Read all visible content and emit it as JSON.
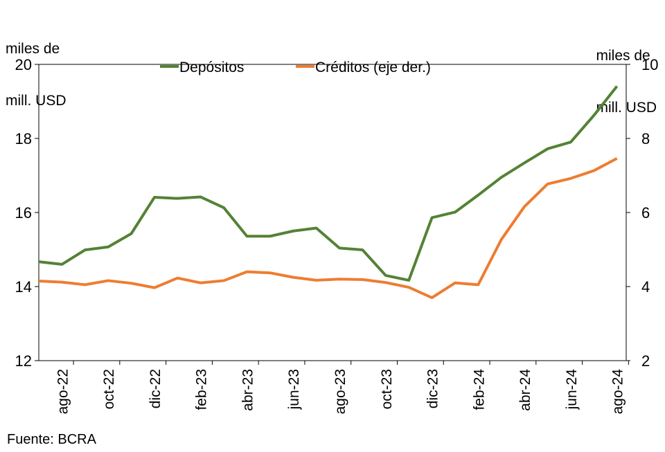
{
  "chart_data": {
    "type": "line",
    "left_axis_unit": [
      "miles de",
      "mill. USD"
    ],
    "right_axis_unit": [
      "miles de",
      "mill. USD"
    ],
    "source": "Fuente: BCRA",
    "y_left": {
      "min": 12,
      "max": 20,
      "ticks": [
        12,
        14,
        16,
        18,
        20
      ]
    },
    "y_right": {
      "min": 2,
      "max": 10,
      "ticks": [
        2,
        4,
        6,
        8,
        10
      ]
    },
    "x_tick_labels": [
      "ago-22",
      "oct-22",
      "dic-22",
      "feb-23",
      "abr-23",
      "jun-23",
      "ago-23",
      "oct-23",
      "dic-23",
      "feb-24",
      "abr-24",
      "jun-24",
      "ago-24"
    ],
    "x": [
      "jul-22",
      "ago-22",
      "sep-22",
      "oct-22",
      "nov-22",
      "dic-22",
      "ene-23",
      "feb-23",
      "mar-23",
      "abr-23",
      "may-23",
      "jun-23",
      "jul-23",
      "ago-23",
      "sep-23",
      "oct-23",
      "nov-23",
      "dic-23",
      "ene-24",
      "feb-24",
      "mar-24",
      "abr-24",
      "may-24",
      "jun-24",
      "jul-24",
      "ago-24"
    ],
    "series": [
      {
        "name": "Depósitos",
        "axis": "left",
        "color": "#548235",
        "values": [
          14.67,
          14.6,
          14.99,
          15.07,
          15.43,
          16.41,
          16.38,
          16.42,
          16.13,
          15.36,
          15.36,
          15.5,
          15.58,
          15.04,
          14.99,
          14.3,
          14.17,
          15.86,
          16.01,
          16.47,
          16.95,
          17.34,
          17.72,
          17.9,
          18.62,
          19.41
        ]
      },
      {
        "name": "Créditos (eje der.)",
        "axis": "right",
        "color": "#ED7D31",
        "values": [
          4.15,
          4.12,
          4.05,
          4.16,
          4.09,
          3.97,
          4.23,
          4.1,
          4.16,
          4.4,
          4.37,
          4.25,
          4.17,
          4.2,
          4.19,
          4.11,
          3.98,
          3.7,
          4.1,
          4.05,
          5.27,
          6.16,
          6.77,
          6.92,
          7.13,
          7.46
        ]
      }
    ],
    "legend_position": "top",
    "grid": false
  }
}
